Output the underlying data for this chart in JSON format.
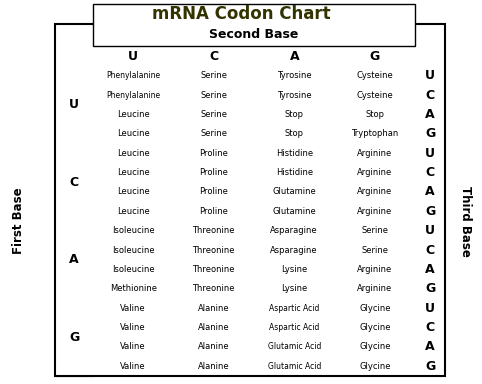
{
  "title": "mRNA Codon Chart",
  "title_color": "#333300",
  "second_base_label": "Second Base",
  "first_base_label": "First Base",
  "third_base_label": "Third Base",
  "second_bases": [
    "U",
    "C",
    "A",
    "G"
  ],
  "first_bases": [
    "U",
    "C",
    "A",
    "G"
  ],
  "third_bases": [
    "U",
    "C",
    "A",
    "G"
  ],
  "table_data": [
    [
      "Phenylalanine",
      "Serine",
      "Tyrosine",
      "Cysteine"
    ],
    [
      "Phenylalanine",
      "Serine",
      "Tyrosine",
      "Cysteine"
    ],
    [
      "Leucine",
      "Serine",
      "Stop",
      "Stop"
    ],
    [
      "Leucine",
      "Serine",
      "Stop",
      "Tryptophan"
    ],
    [
      "Leucine",
      "Proline",
      "Histidine",
      "Arginine"
    ],
    [
      "Leucine",
      "Proline",
      "Histidine",
      "Arginine"
    ],
    [
      "Leucine",
      "Proline",
      "Glutamine",
      "Arginine"
    ],
    [
      "Leucine",
      "Proline",
      "Glutamine",
      "Arginine"
    ],
    [
      "Isoleucine",
      "Threonine",
      "Asparagine",
      "Serine"
    ],
    [
      "Isoleucine",
      "Threonine",
      "Asparagine",
      "Serine"
    ],
    [
      "Isoleucine",
      "Threonine",
      "Lysine",
      "Arginine"
    ],
    [
      "Methionine",
      "Threonine",
      "Lysine",
      "Arginine"
    ],
    [
      "Valine",
      "Alanine",
      "Aspartic Acid",
      "Glycine"
    ],
    [
      "Valine",
      "Alanine",
      "Aspartic Acid",
      "Glycine"
    ],
    [
      "Valine",
      "Alanine",
      "Glutamic Acid",
      "Glycine"
    ],
    [
      "Valine",
      "Alanine",
      "Glutamic Acid",
      "Glycine"
    ]
  ],
  "fig_width": 4.82,
  "fig_height": 3.84,
  "dpi": 100,
  "title_fontsize": 12,
  "header_fontsize": 9,
  "base_letter_fontsize": 9,
  "amino_fontsize": 6.0,
  "amino_fontsize_long": 5.5
}
